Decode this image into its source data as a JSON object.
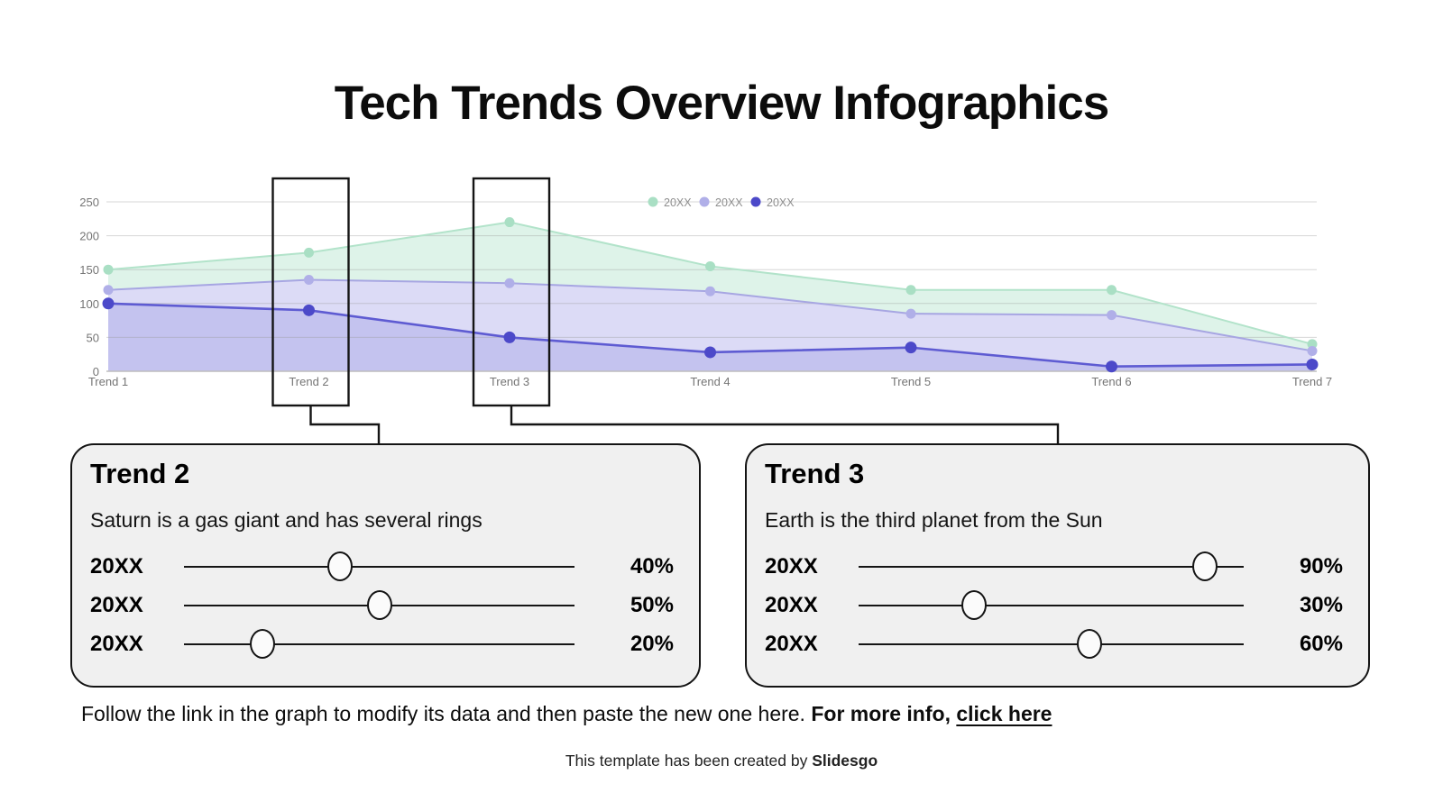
{
  "title": "Tech Trends Overview Infographics",
  "chart_data": {
    "type": "area",
    "categories": [
      "Trend 1",
      "Trend 2",
      "Trend 3",
      "Trend 4",
      "Trend 5",
      "Trend 6",
      "Trend 7"
    ],
    "series": [
      {
        "name": "20XX",
        "values": [
          150,
          175,
          220,
          155,
          120,
          120,
          40
        ],
        "line_color": "#b2e3ca",
        "dot_color": "#a9dfc4",
        "band_color": "#def3e9"
      },
      {
        "name": "20XX",
        "values": [
          120,
          135,
          130,
          118,
          85,
          83,
          30
        ],
        "line_color": "#a7a6e2",
        "dot_color": "#b0afe8",
        "band_color": "#dcdbf6"
      },
      {
        "name": "20XX",
        "values": [
          100,
          90,
          50,
          28,
          35,
          7,
          10
        ],
        "line_color": "#5e5bd2",
        "dot_color": "#4c49c9",
        "band_color": "#c4c3ef"
      }
    ],
    "ylim": [
      0,
      250
    ],
    "yticks": [
      0,
      50,
      100,
      150,
      200,
      250
    ],
    "grid": true,
    "legend_position": "top-center",
    "axis_label_color": "#757575",
    "legend_label_color": "#8f8f8f",
    "highlighted_categories": [
      "Trend 2",
      "Trend 3"
    ]
  },
  "cards": [
    {
      "title": "Trend 2",
      "description": "Saturn is a gas giant and has several rings",
      "rows": [
        {
          "label": "20XX",
          "percent": 40,
          "display": "40%"
        },
        {
          "label": "20XX",
          "percent": 50,
          "display": "50%"
        },
        {
          "label": "20XX",
          "percent": 20,
          "display": "20%"
        }
      ]
    },
    {
      "title": "Trend 3",
      "description": "Earth is the third planet from the Sun",
      "rows": [
        {
          "label": "20XX",
          "percent": 90,
          "display": "90%"
        },
        {
          "label": "20XX",
          "percent": 30,
          "display": "30%"
        },
        {
          "label": "20XX",
          "percent": 60,
          "display": "60%"
        }
      ]
    }
  ],
  "footer": {
    "text": "Follow the link in the graph to modify its data and then paste the new one here.",
    "bold_suffix": "For more info,",
    "link": "click here"
  },
  "credit": {
    "text": "This template has been created by",
    "brand": "Slidesgo"
  }
}
